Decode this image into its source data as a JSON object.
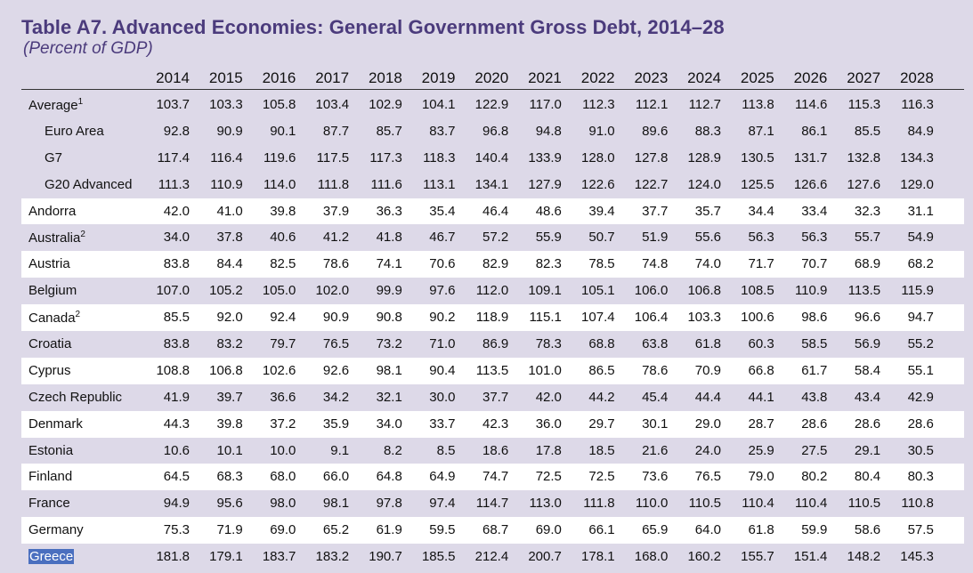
{
  "title": "Table A7. Advanced Economies: General Government Gross Debt, 2014–28",
  "subtitle": "(Percent of GDP)",
  "years": [
    "2014",
    "2015",
    "2016",
    "2017",
    "2018",
    "2019",
    "2020",
    "2021",
    "2022",
    "2023",
    "2024",
    "2025",
    "2026",
    "2027",
    "2028"
  ],
  "rows": [
    {
      "name": "Average",
      "sup": "1",
      "indent": false,
      "shade": "purple",
      "values": [
        "103.7",
        "103.3",
        "105.8",
        "103.4",
        "102.9",
        "104.1",
        "122.9",
        "117.0",
        "112.3",
        "112.1",
        "112.7",
        "113.8",
        "114.6",
        "115.3",
        "116.3"
      ]
    },
    {
      "name": "Euro Area",
      "sup": "",
      "indent": true,
      "shade": "purple",
      "values": [
        "92.8",
        "90.9",
        "90.1",
        "87.7",
        "85.7",
        "83.7",
        "96.8",
        "94.8",
        "91.0",
        "89.6",
        "88.3",
        "87.1",
        "86.1",
        "85.5",
        "84.9"
      ]
    },
    {
      "name": "G7",
      "sup": "",
      "indent": true,
      "shade": "purple",
      "values": [
        "117.4",
        "116.4",
        "119.6",
        "117.5",
        "117.3",
        "118.3",
        "140.4",
        "133.9",
        "128.0",
        "127.8",
        "128.9",
        "130.5",
        "131.7",
        "132.8",
        "134.3"
      ]
    },
    {
      "name": "G20 Advanced",
      "sup": "",
      "indent": true,
      "shade": "purple",
      "values": [
        "111.3",
        "110.9",
        "114.0",
        "111.8",
        "111.6",
        "113.1",
        "134.1",
        "127.9",
        "122.6",
        "122.7",
        "124.0",
        "125.5",
        "126.6",
        "127.6",
        "129.0"
      ]
    },
    {
      "name": "Andorra",
      "sup": "",
      "indent": false,
      "shade": "white",
      "values": [
        "42.0",
        "41.0",
        "39.8",
        "37.9",
        "36.3",
        "35.4",
        "46.4",
        "48.6",
        "39.4",
        "37.7",
        "35.7",
        "34.4",
        "33.4",
        "32.3",
        "31.1"
      ]
    },
    {
      "name": "Australia",
      "sup": "2",
      "indent": false,
      "shade": "purple",
      "values": [
        "34.0",
        "37.8",
        "40.6",
        "41.2",
        "41.8",
        "46.7",
        "57.2",
        "55.9",
        "50.7",
        "51.9",
        "55.6",
        "56.3",
        "56.3",
        "55.7",
        "54.9"
      ]
    },
    {
      "name": "Austria",
      "sup": "",
      "indent": false,
      "shade": "white",
      "values": [
        "83.8",
        "84.4",
        "82.5",
        "78.6",
        "74.1",
        "70.6",
        "82.9",
        "82.3",
        "78.5",
        "74.8",
        "74.0",
        "71.7",
        "70.7",
        "68.9",
        "68.2"
      ]
    },
    {
      "name": "Belgium",
      "sup": "",
      "indent": false,
      "shade": "purple",
      "values": [
        "107.0",
        "105.2",
        "105.0",
        "102.0",
        "99.9",
        "97.6",
        "112.0",
        "109.1",
        "105.1",
        "106.0",
        "106.8",
        "108.5",
        "110.9",
        "113.5",
        "115.9"
      ]
    },
    {
      "name": "Canada",
      "sup": "2",
      "indent": false,
      "shade": "white",
      "values": [
        "85.5",
        "92.0",
        "92.4",
        "90.9",
        "90.8",
        "90.2",
        "118.9",
        "115.1",
        "107.4",
        "106.4",
        "103.3",
        "100.6",
        "98.6",
        "96.6",
        "94.7"
      ]
    },
    {
      "name": "Croatia",
      "sup": "",
      "indent": false,
      "shade": "purple",
      "values": [
        "83.8",
        "83.2",
        "79.7",
        "76.5",
        "73.2",
        "71.0",
        "86.9",
        "78.3",
        "68.8",
        "63.8",
        "61.8",
        "60.3",
        "58.5",
        "56.9",
        "55.2"
      ]
    },
    {
      "name": "Cyprus",
      "sup": "",
      "indent": false,
      "shade": "white",
      "values": [
        "108.8",
        "106.8",
        "102.6",
        "92.6",
        "98.1",
        "90.4",
        "113.5",
        "101.0",
        "86.5",
        "78.6",
        "70.9",
        "66.8",
        "61.7",
        "58.4",
        "55.1"
      ]
    },
    {
      "name": "Czech Republic",
      "sup": "",
      "indent": false,
      "shade": "purple",
      "values": [
        "41.9",
        "39.7",
        "36.6",
        "34.2",
        "32.1",
        "30.0",
        "37.7",
        "42.0",
        "44.2",
        "45.4",
        "44.4",
        "44.1",
        "43.8",
        "43.4",
        "42.9"
      ]
    },
    {
      "name": "Denmark",
      "sup": "",
      "indent": false,
      "shade": "white",
      "values": [
        "44.3",
        "39.8",
        "37.2",
        "35.9",
        "34.0",
        "33.7",
        "42.3",
        "36.0",
        "29.7",
        "30.1",
        "29.0",
        "28.7",
        "28.6",
        "28.6",
        "28.6"
      ]
    },
    {
      "name": "Estonia",
      "sup": "",
      "indent": false,
      "shade": "purple",
      "values": [
        "10.6",
        "10.1",
        "10.0",
        "9.1",
        "8.2",
        "8.5",
        "18.6",
        "17.8",
        "18.5",
        "21.6",
        "24.0",
        "25.9",
        "27.5",
        "29.1",
        "30.5"
      ]
    },
    {
      "name": "Finland",
      "sup": "",
      "indent": false,
      "shade": "white",
      "values": [
        "64.5",
        "68.3",
        "68.0",
        "66.0",
        "64.8",
        "64.9",
        "74.7",
        "72.5",
        "72.5",
        "73.6",
        "76.5",
        "79.0",
        "80.2",
        "80.4",
        "80.3"
      ]
    },
    {
      "name": "France",
      "sup": "",
      "indent": false,
      "shade": "purple",
      "values": [
        "94.9",
        "95.6",
        "98.0",
        "98.1",
        "97.8",
        "97.4",
        "114.7",
        "113.0",
        "111.8",
        "110.0",
        "110.5",
        "110.4",
        "110.4",
        "110.5",
        "110.8"
      ]
    },
    {
      "name": "Germany",
      "sup": "",
      "indent": false,
      "shade": "white",
      "values": [
        "75.3",
        "71.9",
        "69.0",
        "65.2",
        "61.9",
        "59.5",
        "68.7",
        "69.0",
        "66.1",
        "65.9",
        "64.0",
        "61.8",
        "59.9",
        "58.6",
        "57.5"
      ]
    },
    {
      "name": "Greece",
      "sup": "",
      "indent": false,
      "shade": "purple",
      "selected": true,
      "values": [
        "181.8",
        "179.1",
        "183.7",
        "183.2",
        "190.7",
        "185.5",
        "212.4",
        "200.7",
        "178.1",
        "168.0",
        "160.2",
        "155.7",
        "151.4",
        "148.2",
        "145.3"
      ]
    }
  ]
}
